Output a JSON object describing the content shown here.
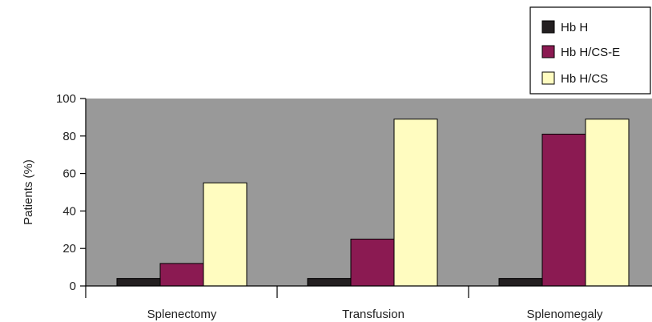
{
  "chart_data": {
    "type": "bar",
    "categories": [
      "Splenectomy",
      "Transfusion",
      "Splenomegaly"
    ],
    "series": [
      {
        "name": "Hb H",
        "values": [
          4,
          4,
          4
        ],
        "color": "#231f20"
      },
      {
        "name": "Hb H/CS-E",
        "values": [
          12,
          25,
          81
        ],
        "color": "#8b1a52"
      },
      {
        "name": "Hb H/CS",
        "values": [
          55,
          89,
          89
        ],
        "color": "#fffcc0"
      }
    ],
    "ylabel": "Patients (%)",
    "ylim": [
      0,
      100
    ],
    "yticks": [
      0,
      20,
      40,
      60,
      80,
      100
    ],
    "plot_background": "#999999",
    "grid": false,
    "legend_position": "top-right"
  }
}
